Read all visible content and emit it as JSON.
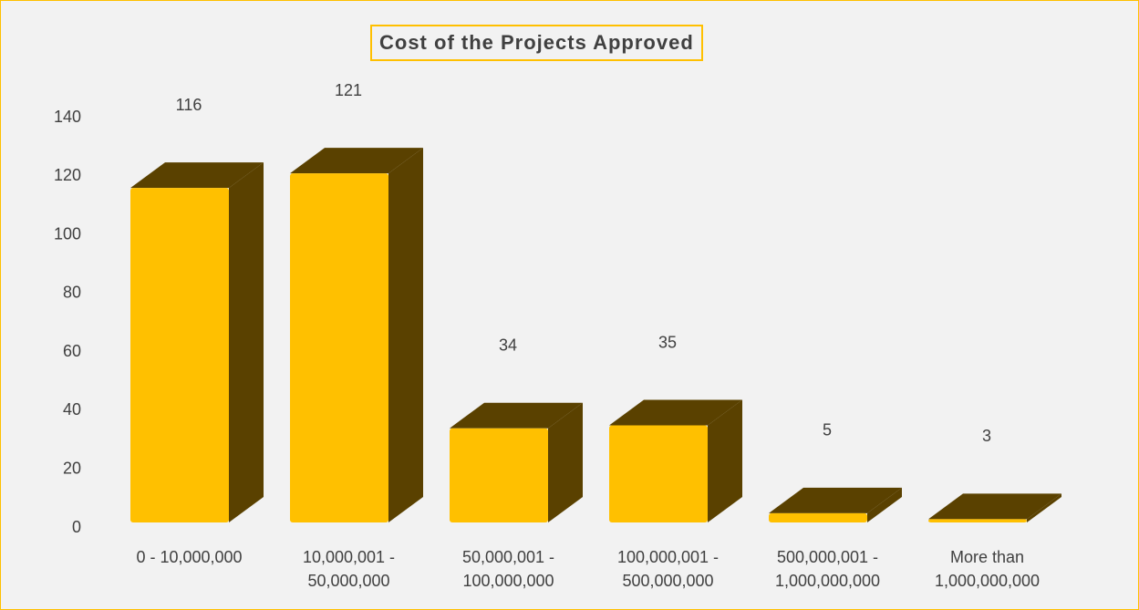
{
  "chart_data": {
    "type": "bar3d",
    "title": "Cost of the Projects Approved",
    "categories": [
      "0 - 10,000,000",
      "10,000,001 - 50,000,000",
      "50,000,001 - 100,000,000",
      "100,000,001 - 500,000,000",
      "500,000,001 - 1,000,000,000",
      "More than 1,000,000,000"
    ],
    "values": [
      116,
      121,
      34,
      35,
      5,
      3
    ],
    "color": "#ffc000",
    "shade_color": "#5a4100",
    "ylim": [
      0,
      140
    ],
    "yticks": [
      0,
      20,
      40,
      60,
      80,
      100,
      120,
      140
    ],
    "grid": false
  }
}
